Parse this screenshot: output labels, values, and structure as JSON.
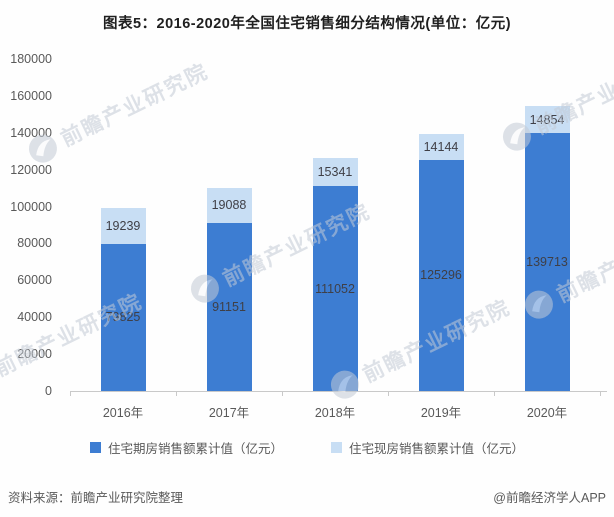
{
  "title": "图表5：2016-2020年全国住宅销售细分结构情况(单位：亿元)",
  "chart_data": {
    "type": "bar",
    "stacked": true,
    "title": "图表5：2016-2020年全国住宅销售细分结构情况(单位：亿元)",
    "categories": [
      "2016年",
      "2017年",
      "2018年",
      "2019年",
      "2020年"
    ],
    "series": [
      {
        "name": "住宅期房销售额累计值（亿元）",
        "color": "#3d7dd2",
        "values": [
          79825,
          91151,
          111052,
          125296,
          139713
        ]
      },
      {
        "name": "住宅现房销售额累计值（亿元）",
        "color": "#c8def4",
        "values": [
          19239,
          19088,
          15341,
          14144,
          14854
        ]
      }
    ],
    "totals": [
      99064,
      110239,
      126393,
      139440,
      154567
    ],
    "ylim": [
      0,
      180000
    ],
    "ytick_step": 20000,
    "ytick_labels": [
      "0",
      "20000",
      "40000",
      "60000",
      "80000",
      "100000",
      "120000",
      "140000",
      "160000",
      "180000"
    ],
    "grid": false,
    "value_labels": "inside-segment-center",
    "legend_position": "bottom"
  },
  "footer": {
    "source": "资料来源：前瞻产业研究院整理",
    "credit": "@前瞻经济学人APP"
  },
  "watermark": {
    "text": "前瞻产业研究院",
    "logo": "qianzhan-logo"
  },
  "colors": {
    "bar_presale": "#3d7dd2",
    "bar_completed": "#c8def4",
    "axis_text": "#595959",
    "value_text": "#3f3f46",
    "title_text": "#1f1f1f",
    "baseline": "#c9c9c9",
    "watermark": "#c3cbd6"
  }
}
